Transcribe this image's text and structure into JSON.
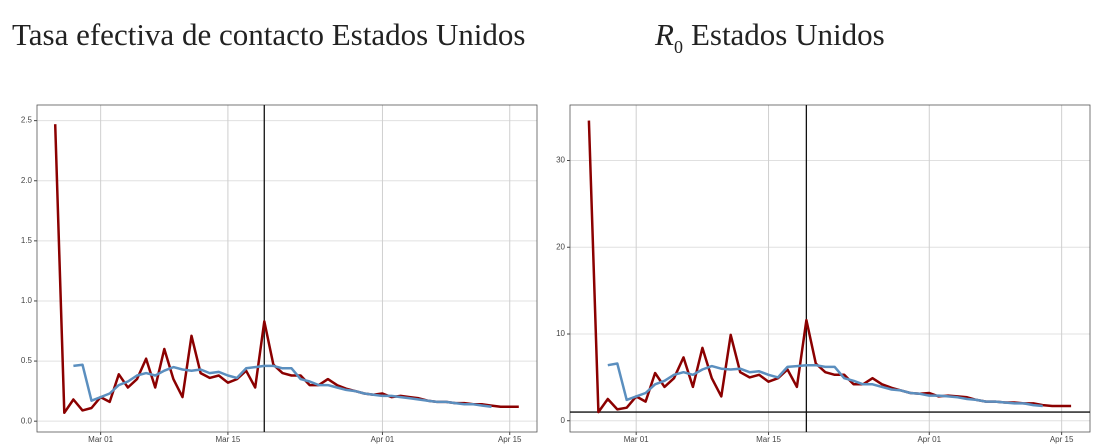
{
  "chart_data": [
    {
      "type": "line",
      "title": "Tasa efectiva de contacto Estados Unidos",
      "categories": [
        null,
        null,
        null,
        null,
        null,
        "Mar 01",
        null,
        null,
        null,
        null,
        null,
        null,
        null,
        null,
        null,
        null,
        null,
        null,
        null,
        "Mar 15",
        null,
        null,
        null,
        null,
        null,
        null,
        null,
        null,
        null,
        null,
        null,
        null,
        null,
        null,
        null,
        null,
        "Apr 01",
        null,
        null,
        null,
        null,
        null,
        null,
        null,
        null,
        null,
        null,
        null,
        null,
        null,
        "Apr 15",
        null
      ],
      "series": [
        {
          "color": "#8b0000",
          "values": [
            2.47,
            0.07,
            0.18,
            0.09,
            0.11,
            0.2,
            0.16,
            0.39,
            0.28,
            0.35,
            0.52,
            0.28,
            0.6,
            0.35,
            0.2,
            0.71,
            0.4,
            0.36,
            0.38,
            0.32,
            0.35,
            0.42,
            0.28,
            0.83,
            0.47,
            0.4,
            0.38,
            0.38,
            0.3,
            0.3,
            0.35,
            0.3,
            0.27,
            0.25,
            0.23,
            0.22,
            0.23,
            0.2,
            0.21,
            0.2,
            0.19,
            0.17,
            0.16,
            0.16,
            0.15,
            0.15,
            0.14,
            0.14,
            0.13,
            0.12,
            0.12,
            0.12
          ]
        },
        {
          "color": "#5b8fbf",
          "values": [
            null,
            null,
            0.46,
            0.47,
            0.17,
            0.2,
            0.23,
            0.3,
            0.33,
            0.38,
            0.4,
            0.38,
            0.42,
            0.45,
            0.43,
            0.42,
            0.43,
            0.4,
            0.41,
            0.38,
            0.36,
            0.44,
            0.45,
            0.46,
            0.46,
            0.44,
            0.44,
            0.35,
            0.33,
            0.3,
            0.3,
            0.28,
            0.26,
            0.25,
            0.23,
            0.22,
            0.21,
            0.21,
            0.2,
            0.19,
            0.18,
            0.17,
            0.16,
            0.16,
            0.15,
            0.14,
            0.14,
            0.13,
            0.12,
            null,
            null,
            null
          ]
        }
      ],
      "ylim": [
        -0.09,
        2.63
      ],
      "yticks": [
        {
          "value": 0,
          "label": "0.0"
        },
        {
          "value": 0.5,
          "label": "0.5"
        },
        {
          "value": 1,
          "label": "1.0"
        },
        {
          "value": 1.5,
          "label": "1.5"
        },
        {
          "value": 2,
          "label": "2.0"
        },
        {
          "value": 2.5,
          "label": "2.5"
        }
      ],
      "vline": 23,
      "grid": true
    },
    {
      "type": "line",
      "title": "R",
      "title_sub": "0",
      "title_rest": "Estados Unidos",
      "categories": [
        null,
        null,
        null,
        null,
        null,
        "Mar 01",
        null,
        null,
        null,
        null,
        null,
        null,
        null,
        null,
        null,
        null,
        null,
        null,
        null,
        "Mar 15",
        null,
        null,
        null,
        null,
        null,
        null,
        null,
        null,
        null,
        null,
        null,
        null,
        null,
        null,
        null,
        null,
        "Apr 01",
        null,
        null,
        null,
        null,
        null,
        null,
        null,
        null,
        null,
        null,
        null,
        null,
        null,
        "Apr 15",
        null
      ],
      "series": [
        {
          "color": "#8b0000",
          "values": [
            34.6,
            1.0,
            2.5,
            1.3,
            1.5,
            2.8,
            2.2,
            5.5,
            3.9,
            4.9,
            7.3,
            3.9,
            8.4,
            4.9,
            2.8,
            9.9,
            5.6,
            5.0,
            5.3,
            4.5,
            4.9,
            5.9,
            3.9,
            11.6,
            6.6,
            5.6,
            5.3,
            5.3,
            4.2,
            4.2,
            4.9,
            4.2,
            3.8,
            3.5,
            3.2,
            3.1,
            3.2,
            2.8,
            2.9,
            2.8,
            2.7,
            2.4,
            2.2,
            2.2,
            2.1,
            2.1,
            2.0,
            2.0,
            1.8,
            1.7,
            1.7,
            1.7
          ]
        },
        {
          "color": "#5b8fbf",
          "values": [
            null,
            null,
            6.4,
            6.6,
            2.4,
            2.8,
            3.2,
            4.2,
            4.6,
            5.3,
            5.6,
            5.3,
            5.9,
            6.3,
            6.0,
            5.9,
            6.0,
            5.6,
            5.7,
            5.3,
            5.0,
            6.2,
            6.3,
            6.4,
            6.4,
            6.2,
            6.2,
            4.9,
            4.6,
            4.2,
            4.2,
            3.9,
            3.6,
            3.5,
            3.2,
            3.1,
            2.9,
            2.9,
            2.8,
            2.7,
            2.5,
            2.4,
            2.2,
            2.2,
            2.1,
            2.0,
            2.0,
            1.8,
            1.7,
            null,
            null,
            null
          ]
        }
      ],
      "ylim": [
        -1.3,
        36.4
      ],
      "yticks": [
        0,
        10,
        20,
        30
      ],
      "vline": 23,
      "hline": 1,
      "grid": true
    }
  ]
}
